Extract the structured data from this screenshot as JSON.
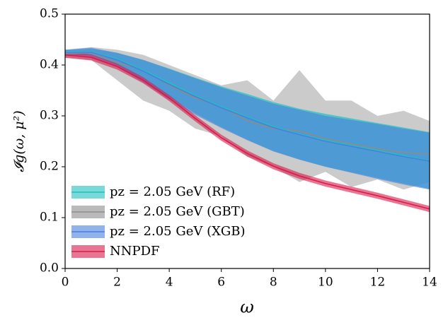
{
  "chart_data": {
    "type": "band-line",
    "xlabel": "ω",
    "ylabel": "𝓘g(ω, μ²)",
    "x": [
      0,
      1,
      2,
      3,
      4,
      5,
      6,
      7,
      8,
      9,
      10,
      11,
      12,
      13,
      14
    ],
    "xlim": [
      0,
      14
    ],
    "xticks": [
      0,
      2,
      4,
      6,
      8,
      10,
      12,
      14
    ],
    "ylim": [
      0,
      0.5
    ],
    "yticks": [
      {
        "value": 0,
        "label": "0.0"
      },
      0.1,
      0.2,
      0.3,
      0.4,
      0.5
    ],
    "legend": "lower left",
    "series": [
      {
        "name": "pz = 2.05 GeV (GBT)",
        "color": "#8c8c8c",
        "values": [
          0.422,
          0.424,
          0.405,
          0.39,
          0.36,
          0.335,
          0.318,
          0.29,
          0.275,
          0.27,
          0.255,
          0.245,
          0.235,
          0.228,
          0.225
        ],
        "lower": [
          0.415,
          0.41,
          0.37,
          0.33,
          0.31,
          0.275,
          0.26,
          0.22,
          0.2,
          0.17,
          0.19,
          0.16,
          0.175,
          0.155,
          0.17
        ],
        "upper": [
          0.43,
          0.435,
          0.43,
          0.42,
          0.4,
          0.38,
          0.36,
          0.37,
          0.33,
          0.39,
          0.33,
          0.33,
          0.3,
          0.31,
          0.29
        ]
      },
      {
        "name": "pz = 2.05 GeV (RF)",
        "color": "#20c0c0",
        "values": [
          0.425,
          0.426,
          0.412,
          0.39,
          0.365,
          0.34,
          0.318,
          0.298,
          0.279,
          0.264,
          0.252,
          0.242,
          0.232,
          0.222,
          0.212
        ],
        "lower": [
          0.421,
          0.42,
          0.4,
          0.37,
          0.337,
          0.305,
          0.278,
          0.253,
          0.231,
          0.214,
          0.2,
          0.189,
          0.178,
          0.167,
          0.156
        ],
        "upper": [
          0.429,
          0.432,
          0.424,
          0.41,
          0.393,
          0.375,
          0.358,
          0.343,
          0.327,
          0.314,
          0.304,
          0.295,
          0.286,
          0.277,
          0.268
        ]
      },
      {
        "name": "pz = 2.05 GeV (XGB)",
        "color": "#4a7ee0",
        "values": [
          0.424,
          0.425,
          0.41,
          0.388,
          0.362,
          0.338,
          0.316,
          0.296,
          0.277,
          0.263,
          0.25,
          0.24,
          0.23,
          0.22,
          0.211
        ],
        "lower": [
          0.418,
          0.416,
          0.396,
          0.366,
          0.332,
          0.302,
          0.276,
          0.252,
          0.23,
          0.214,
          0.2,
          0.188,
          0.176,
          0.165,
          0.155
        ],
        "upper": [
          0.43,
          0.434,
          0.424,
          0.41,
          0.392,
          0.374,
          0.356,
          0.34,
          0.324,
          0.312,
          0.3,
          0.292,
          0.284,
          0.275,
          0.267
        ]
      },
      {
        "name": "NNPDF",
        "color": "#d81b4a",
        "values": [
          0.42,
          0.415,
          0.397,
          0.37,
          0.335,
          0.295,
          0.257,
          0.226,
          0.201,
          0.182,
          0.167,
          0.155,
          0.143,
          0.13,
          0.117
        ],
        "lower": [
          0.414,
          0.409,
          0.391,
          0.364,
          0.329,
          0.289,
          0.251,
          0.22,
          0.195,
          0.176,
          0.161,
          0.149,
          0.137,
          0.124,
          0.111
        ],
        "upper": [
          0.426,
          0.421,
          0.403,
          0.376,
          0.341,
          0.301,
          0.263,
          0.232,
          0.207,
          0.188,
          0.173,
          0.161,
          0.149,
          0.136,
          0.123
        ]
      }
    ]
  }
}
